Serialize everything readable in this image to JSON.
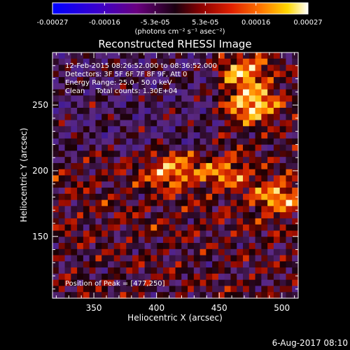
{
  "colorbar": {
    "tick_labels": [
      "-0.00027",
      "-0.00016",
      "-5.3e-05",
      "5.3e-05",
      "0.00016",
      "0.00027"
    ],
    "unit_label": "(photons cm⁻² s⁻¹ asec⁻²)",
    "range": [
      -0.00027,
      0.00027
    ]
  },
  "annotations": {
    "time_range": "12-Feb-2015 08:26:52.000 to 08:36:52.000",
    "detectors": "Detectors: 3F 5F 6F 7F 8F 9F, Att 0",
    "energy_range": "Energy Range: 25.0 - 50.0 keV",
    "clean_counts": "Clean     Total counts: 1.30E+04",
    "peak_position": "Position of Peak = [477,250]"
  },
  "footer": {
    "date": "6-Aug-2017 08:10"
  },
  "chart_data": {
    "type": "heatmap",
    "title": "Reconstructed RHESSI Image",
    "xlabel": "Heliocentric X (arcsec)",
    "ylabel": "Heliocentric Y (arcsec)",
    "x_ticks": [
      350,
      400,
      450,
      500
    ],
    "x_tick_labels": [
      "350",
      "400",
      "450",
      "500"
    ],
    "y_ticks": [
      150,
      200,
      250
    ],
    "y_tick_labels": [
      "150",
      "200",
      "250"
    ],
    "xlim": [
      317,
      513
    ],
    "ylim": [
      103,
      290
    ],
    "colormap": "rainbow-like (blue-purple-red-orange-yellow-white)",
    "peak": {
      "x": 477,
      "y": 250
    },
    "bright_regions": [
      {
        "x": 477,
        "y": 250,
        "relative_intensity": 1.0
      },
      {
        "x": 470,
        "y": 275,
        "relative_intensity": 0.8
      },
      {
        "x": 412,
        "y": 200,
        "relative_intensity": 0.75
      },
      {
        "x": 497,
        "y": 180,
        "relative_intensity": 0.7
      },
      {
        "x": 455,
        "y": 200,
        "relative_intensity": 0.6
      }
    ]
  }
}
